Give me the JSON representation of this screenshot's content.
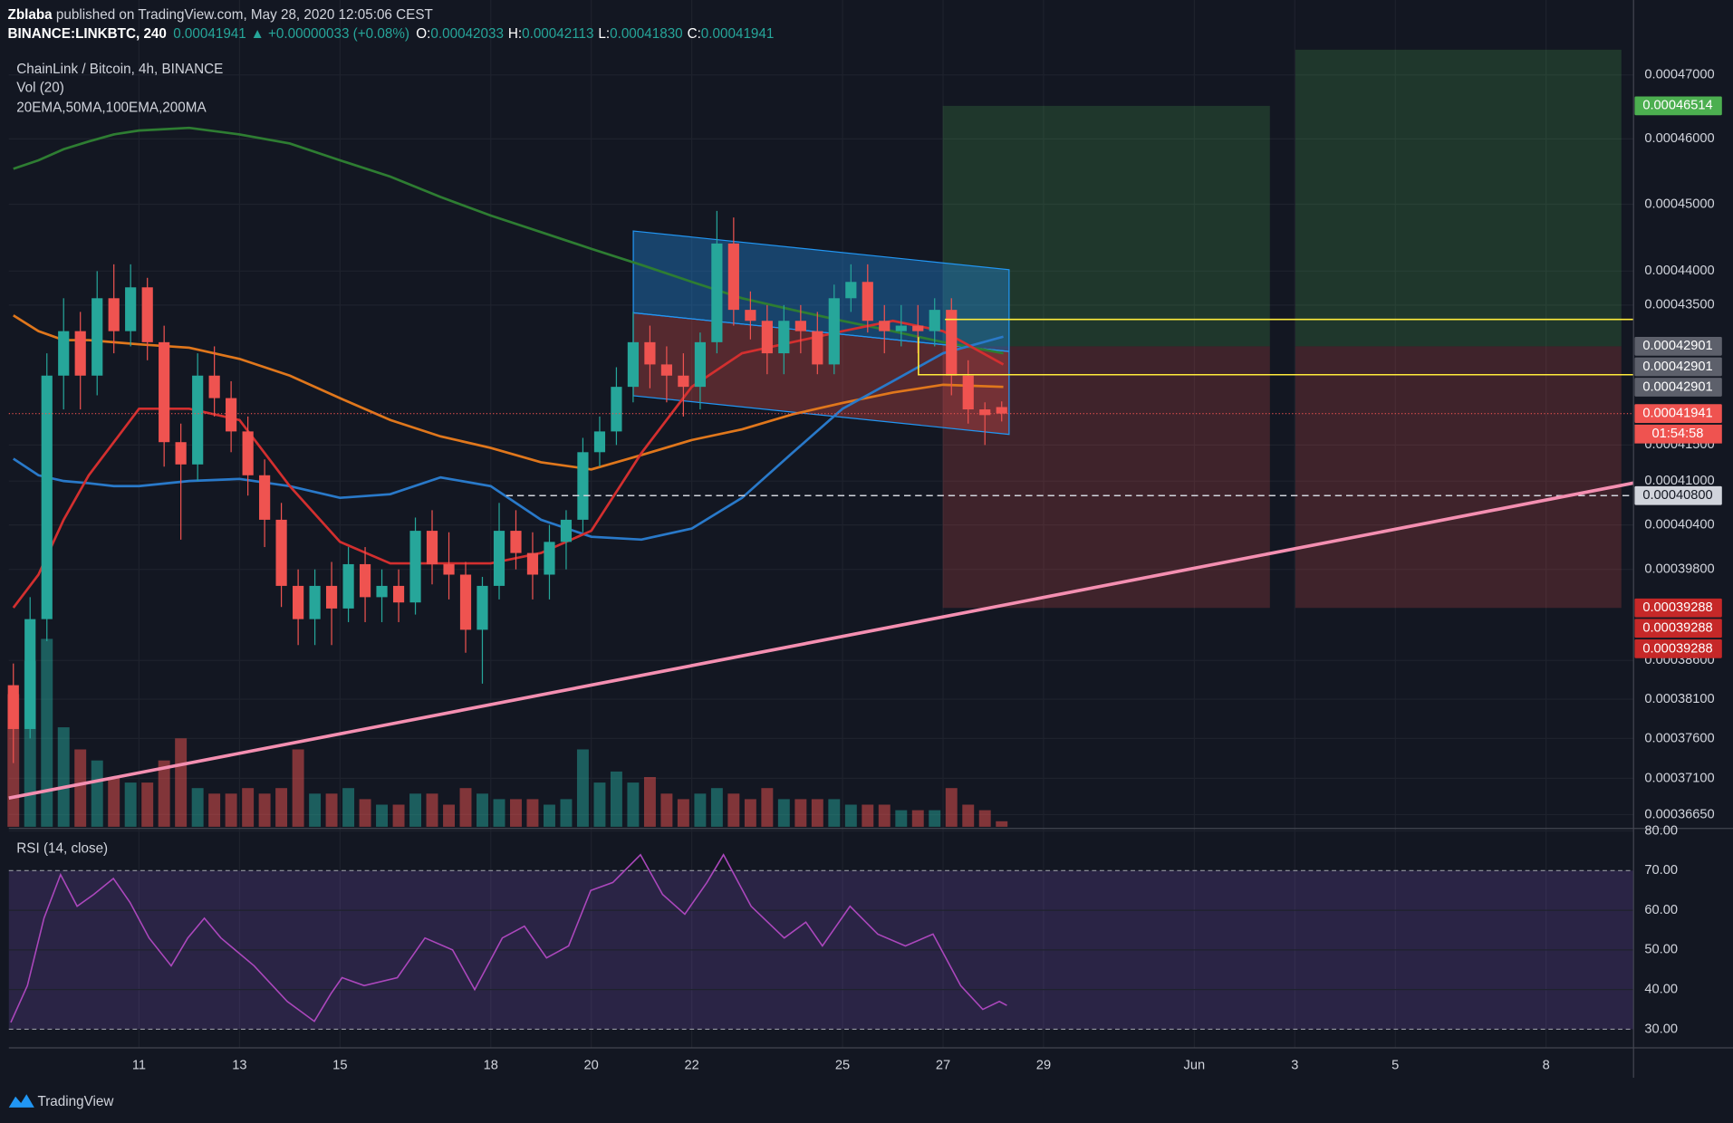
{
  "header": {
    "author": "Zblaba",
    "published": " published on TradingView.com, May 28, 2020 12:05:06 CEST",
    "symbol": "BINANCE:LINKBTC, 240",
    "last": "0.00041941",
    "change": "▲ +0.00000033 (+0.08%)",
    "ohlc": [
      {
        "key": "O:",
        "value": "0.00042033"
      },
      {
        "key": "H:",
        "value": "0.00042113"
      },
      {
        "key": "L:",
        "value": "0.00041830"
      },
      {
        "key": "C:",
        "value": "0.00041941"
      }
    ]
  },
  "footer": {
    "brand": "TradingView"
  },
  "chart_data": {
    "type": "candlestick",
    "title": "ChainLink / Bitcoin, 4h, BINANCE",
    "volume_label": "Vol (20)",
    "indicators_label": "20EMA,50MA,100EMA,200MA",
    "log_scale": true,
    "grid": true,
    "up_color": "#26a69a",
    "down_color": "#ef5350",
    "xlim": [
      8.41,
      40.74
    ],
    "xticks": [
      11,
      13,
      15,
      18,
      20,
      22,
      25,
      27,
      29,
      {
        "value": 32,
        "label": "Jun"
      },
      {
        "value": 34,
        "label": "3"
      },
      {
        "value": 36,
        "label": "5"
      },
      {
        "value": 39,
        "label": "8"
      }
    ],
    "ylim": [
      0.000365,
      0.000474
    ],
    "yticks": [
      {
        "value": 0.00047,
        "label": "0.00047000"
      },
      {
        "value": 0.00046,
        "label": "0.00046000"
      },
      {
        "value": 0.00045,
        "label": "0.00045000"
      },
      {
        "value": 0.00044,
        "label": "0.00044000"
      },
      {
        "value": 0.000435,
        "label": "0.00043500"
      },
      {
        "value": 0.000415,
        "label": "0.00041500"
      },
      {
        "value": 0.00041,
        "label": "0.00041000"
      },
      {
        "value": 0.000404,
        "label": "0.00040400"
      },
      {
        "value": 0.000398,
        "label": "0.00039800"
      },
      {
        "value": 0.000386,
        "label": "0.00038600"
      },
      {
        "value": 0.000381,
        "label": "0.00038100"
      },
      {
        "value": 0.000376,
        "label": "0.00037600"
      },
      {
        "value": 0.000371,
        "label": "0.00037100"
      },
      {
        "value": 0.0003665,
        "label": "0.00036650"
      }
    ],
    "x": [
      8.5,
      8.833,
      9.167,
      9.5,
      9.833,
      10.167,
      10.5,
      10.833,
      11.167,
      11.5,
      11.833,
      12.167,
      12.5,
      12.833,
      13.167,
      13.5,
      13.833,
      14.167,
      14.5,
      14.833,
      15.167,
      15.5,
      15.833,
      16.167,
      16.5,
      16.833,
      17.167,
      17.5,
      17.833,
      18.167,
      18.5,
      18.833,
      19.167,
      19.5,
      19.833,
      20.167,
      20.5,
      20.833,
      21.167,
      21.5,
      21.833,
      22.167,
      22.5,
      22.833,
      23.167,
      23.5,
      23.833,
      24.167,
      24.5,
      24.833,
      25.167,
      25.5,
      25.833,
      26.167,
      26.5,
      26.833,
      27.167,
      27.5,
      27.833,
      28.167
    ],
    "open": [
      0.0003828,
      0.0003772,
      0.0003914,
      0.0004248,
      0.0004312,
      0.0004248,
      0.000436,
      0.0004312,
      0.0004376,
      0.0004296,
      0.0004154,
      0.0004123,
      0.0004248,
      0.0004216,
      0.0004169,
      0.0004108,
      0.0004047,
      0.0003958,
      0.0003914,
      0.0003958,
      0.0003928,
      0.0003987,
      0.0003943,
      0.0003958,
      0.0003936,
      0.0004032,
      0.0003987,
      0.0003973,
      0.00039,
      0.0003958,
      0.0004032,
      0.0004002,
      0.0003973,
      0.0004017,
      0.0004047,
      0.000414,
      0.0004169,
      0.0004232,
      0.0004296,
      0.0004264,
      0.0004248,
      0.0004232,
      0.0004296,
      0.0004441,
      0.0004343,
      0.0004327,
      0.000428,
      0.0004327,
      0.0004312,
      0.0004264,
      0.000436,
      0.0004384,
      0.0004327,
      0.0004312,
      0.000432,
      0.0004312,
      0.0004343,
      0.0004248,
      0.00042,
      0.00042033
    ],
    "high": [
      0.0003856,
      0.0003943,
      0.000428,
      0.000436,
      0.000434,
      0.00044,
      0.000441,
      0.000441,
      0.000439,
      0.000432,
      0.000418,
      0.000428,
      0.000429,
      0.000424,
      0.000419,
      0.000413,
      0.000407,
      0.000398,
      0.000398,
      0.000399,
      0.000401,
      0.000401,
      0.000398,
      0.000398,
      0.000405,
      0.000406,
      0.000403,
      0.000399,
      0.000397,
      0.000407,
      0.000406,
      0.000403,
      0.000404,
      0.000406,
      0.000416,
      0.000419,
      0.000426,
      0.000434,
      0.000432,
      0.000429,
      0.000428,
      0.000431,
      0.000449,
      0.000448,
      0.000437,
      0.000435,
      0.000435,
      0.000435,
      0.000434,
      0.000438,
      0.000441,
      0.000441,
      0.000435,
      0.000435,
      0.000435,
      0.000436,
      0.000436,
      0.000427,
      0.000421,
      0.00042113
    ],
    "low": [
      0.0003729,
      0.000376,
      0.0003885,
      0.00042,
      0.00042,
      0.000422,
      0.000428,
      0.000429,
      0.000427,
      0.000412,
      0.000402,
      0.00041,
      0.000419,
      0.000414,
      0.000408,
      0.000401,
      0.000393,
      0.000388,
      0.000388,
      0.000388,
      0.000391,
      0.000391,
      0.000391,
      0.000391,
      0.000392,
      0.000396,
      0.000394,
      0.000387,
      0.000383,
      0.000394,
      0.000398,
      0.000394,
      0.000394,
      0.000398,
      0.000403,
      0.000412,
      0.000415,
      0.000421,
      0.000423,
      0.000421,
      0.000419,
      0.00042,
      0.000428,
      0.000432,
      0.00043,
      0.000425,
      0.000425,
      0.000428,
      0.000425,
      0.000425,
      0.000434,
      0.000431,
      0.000428,
      0.000429,
      0.000428,
      0.000429,
      0.000422,
      0.000418,
      0.000415,
      0.0004183
    ],
    "close": [
      0.0003772,
      0.0003914,
      0.0004248,
      0.0004312,
      0.0004248,
      0.000436,
      0.0004312,
      0.0004376,
      0.0004296,
      0.0004154,
      0.0004123,
      0.0004248,
      0.0004216,
      0.0004169,
      0.0004108,
      0.0004047,
      0.0003958,
      0.0003914,
      0.0003958,
      0.0003928,
      0.0003987,
      0.0003943,
      0.0003958,
      0.0003936,
      0.0004032,
      0.0003987,
      0.0003973,
      0.00039,
      0.0003958,
      0.0004032,
      0.0004002,
      0.0003973,
      0.0004017,
      0.0004047,
      0.000414,
      0.0004169,
      0.0004232,
      0.0004296,
      0.0004264,
      0.0004248,
      0.0004232,
      0.0004296,
      0.0004441,
      0.0004343,
      0.0004327,
      0.000428,
      0.0004327,
      0.0004312,
      0.0004264,
      0.000436,
      0.0004384,
      0.0004327,
      0.0004312,
      0.000432,
      0.0004312,
      0.0004343,
      0.0004248,
      0.00042,
      0.0004192,
      0.00041941
    ],
    "volume": [
      120,
      150,
      170,
      90,
      70,
      60,
      45,
      40,
      40,
      60,
      80,
      35,
      30,
      30,
      35,
      30,
      35,
      70,
      30,
      30,
      35,
      25,
      20,
      20,
      30,
      30,
      20,
      35,
      30,
      25,
      25,
      25,
      20,
      25,
      70,
      40,
      50,
      40,
      45,
      30,
      25,
      30,
      35,
      30,
      25,
      35,
      25,
      25,
      25,
      25,
      20,
      20,
      20,
      15,
      15,
      15,
      35,
      20,
      15,
      5
    ],
    "ma": [
      {
        "color": "#2e7d32",
        "x": [
          8.5,
          9,
          9.5,
          10,
          10.5,
          11,
          12,
          13,
          14,
          15,
          16,
          17,
          18,
          19,
          20,
          21,
          22,
          23,
          24,
          25,
          26,
          27,
          28.2
        ],
        "values": [
          0.0004554,
          0.0004567,
          0.0004584,
          0.0004596,
          0.0004607,
          0.0004613,
          0.0004617,
          0.0004607,
          0.0004593,
          0.0004567,
          0.0004542,
          0.0004511,
          0.0004483,
          0.0004458,
          0.0004433,
          0.0004409,
          0.0004384,
          0.000436,
          0.0004343,
          0.0004327,
          0.0004312,
          0.0004296,
          0.000428
        ]
      },
      {
        "color": "#e0771c",
        "x": [
          8.5,
          9,
          9.5,
          10,
          10.5,
          11,
          12,
          13,
          14,
          15,
          16,
          17,
          18,
          19,
          20,
          21,
          22,
          23,
          24,
          25,
          26,
          27,
          28.2
        ],
        "values": [
          0.0004335,
          0.0004312,
          0.0004299,
          0.0004299,
          0.0004296,
          0.0004293,
          0.0004288,
          0.0004272,
          0.0004248,
          0.0004216,
          0.0004185,
          0.0004162,
          0.0004146,
          0.0004126,
          0.0004116,
          0.0004136,
          0.0004157,
          0.0004172,
          0.0004193,
          0.0004209,
          0.0004224,
          0.0004235,
          0.0004232
        ]
      },
      {
        "color": "#2979c9",
        "x": [
          8.5,
          9,
          9.5,
          10,
          10.5,
          11,
          12,
          13,
          14,
          15,
          16,
          17,
          18,
          19,
          20,
          21,
          22,
          23,
          24,
          25,
          26,
          27,
          28.2
        ],
        "values": [
          0.0004131,
          0.0004108,
          0.00041,
          0.0004097,
          0.0004093,
          0.0004093,
          0.00041,
          0.0004103,
          0.0004093,
          0.0004077,
          0.0004082,
          0.0004105,
          0.0004093,
          0.0004047,
          0.0004024,
          0.000402,
          0.0004035,
          0.0004077,
          0.0004139,
          0.0004201,
          0.000424,
          0.000428,
          0.0004304
        ]
      },
      {
        "color": "#d32f2f",
        "x": [
          8.5,
          9,
          9.5,
          10,
          10.5,
          11,
          12,
          13,
          14,
          15,
          16,
          17,
          18,
          19,
          20,
          21,
          22,
          23,
          24,
          25,
          26,
          27,
          28.2
        ],
        "values": [
          0.0003929,
          0.0003973,
          0.0004047,
          0.0004108,
          0.0004154,
          0.0004201,
          0.0004201,
          0.0004185,
          0.0004093,
          0.0004017,
          0.0003988,
          0.0003988,
          0.0003988,
          0.0004002,
          0.0004032,
          0.0004139,
          0.0004232,
          0.000428,
          0.0004296,
          0.0004312,
          0.0004327,
          0.0004312,
          0.0004264
        ]
      }
    ],
    "price_labels": [
      {
        "value": 0.00046514,
        "label": "0.00046514",
        "color": "#4caf50"
      },
      {
        "value": 0.00042901,
        "label": "0.00042901",
        "color": "#5d606b"
      },
      {
        "value": 0.00042901,
        "label": "0.00042901",
        "color": "#5d606b"
      },
      {
        "value": 0.00042901,
        "label": "0.00042901",
        "color": "#5d606b"
      },
      {
        "value": 0.00041941,
        "label": "0.00041941",
        "color": "#ef5350"
      },
      {
        "value": 0.000408,
        "label": "0.00040800",
        "color": "#d1d4dc"
      },
      {
        "value": 0.00039288,
        "label": "0.00039288",
        "color": "#c62828"
      },
      {
        "value": 0.00039288,
        "label": "0.00039288",
        "color": "#c62828"
      },
      {
        "value": 0.00039288,
        "label": "0.00039288",
        "color": "#c62828"
      }
    ],
    "countdown": "01:54:58",
    "rsi": {
      "label": "RSI (14, close)",
      "color": "#ab47bc",
      "ylim": [
        25.3,
        80.5
      ],
      "yticks": [
        {
          "value": 80,
          "label": "80.00"
        },
        {
          "value": 70,
          "label": "70.00"
        },
        {
          "value": 60,
          "label": "60.00"
        },
        {
          "value": 50,
          "label": "50.00"
        },
        {
          "value": 40,
          "label": "40.00"
        },
        {
          "value": 30,
          "label": "30.00"
        }
      ],
      "x": [
        8.45,
        8.78,
        9.11,
        9.44,
        9.77,
        10.1,
        10.49,
        10.82,
        11.2,
        11.64,
        11.97,
        12.3,
        12.63,
        13.29,
        13.95,
        14.49,
        14.82,
        15.04,
        15.48,
        16.14,
        16.69,
        17.24,
        17.68,
        18.23,
        18.67,
        19.11,
        19.55,
        19.99,
        20.43,
        20.98,
        21.42,
        21.86,
        22.3,
        22.63,
        23.18,
        23.84,
        24.27,
        24.6,
        25.15,
        25.7,
        26.25,
        26.8,
        27.35,
        27.79,
        28.12,
        28.27
      ],
      "values": [
        31.7,
        41,
        58,
        69,
        61,
        64,
        68,
        62,
        53,
        46,
        53,
        58,
        53,
        46,
        37,
        32,
        39,
        43,
        41,
        43,
        53,
        50,
        40,
        53,
        56,
        48,
        51,
        65,
        67,
        74,
        64,
        59,
        67,
        74,
        61,
        53,
        57,
        51,
        61,
        54,
        51,
        54,
        41,
        35,
        37,
        36
      ]
    }
  }
}
